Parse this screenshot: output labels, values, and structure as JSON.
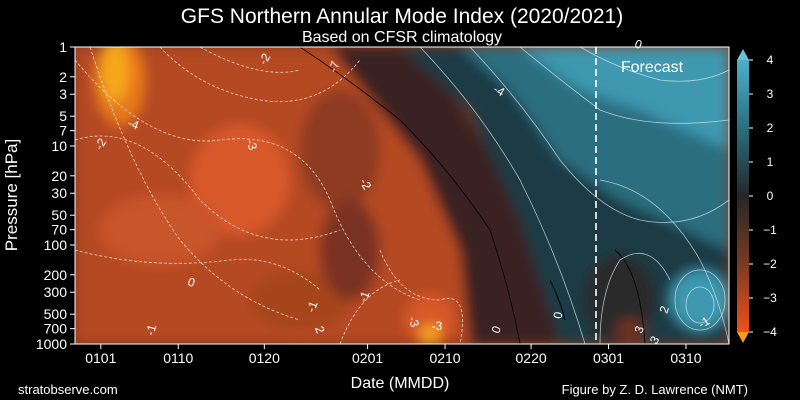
{
  "header": {
    "title": "GFS Northern Annular Mode Index (2020/2021)",
    "subtitle": "Based on CFSR climatology"
  },
  "footer": {
    "left": "stratobserve.com",
    "right": "Figure by Z. D. Lawrence (NMT)"
  },
  "chart_data": {
    "type": "heatmap",
    "title": "GFS Northern Annular Mode Index (2020/2021)",
    "subtitle": "Based on CFSR climatology",
    "xlabel": "Date (MMDD)",
    "ylabel": "Pressure [hPa]",
    "x_ticks": [
      "0101",
      "0110",
      "0120",
      "0201",
      "0210",
      "0220",
      "0301",
      "0310"
    ],
    "y_ticks": [
      "1",
      "2",
      "3",
      "5",
      "7",
      "10",
      "20",
      "30",
      "50",
      "70",
      "100",
      "200",
      "300",
      "500",
      "700",
      "1000"
    ],
    "y_scale": "log",
    "y_inverted": true,
    "forecast_label": "Forecast",
    "colorbar": {
      "ticks": [
        "4",
        "3",
        "2",
        "1",
        "0",
        "−1",
        "−2",
        "−3",
        "−4"
      ],
      "range": [
        -4,
        4
      ],
      "colors_high": "#3aa0b8",
      "colors_mid": "#2a2a2a",
      "colors_low": "#e8501e"
    },
    "contour_labels": [
      "-4",
      "-2",
      "-1",
      "0",
      "-3",
      "-2",
      "2",
      "-1",
      "-7",
      "-2",
      "-1",
      "-3",
      "-3",
      "-4",
      "0",
      "0",
      "0",
      "2",
      "3",
      "-1",
      "3"
    ]
  }
}
